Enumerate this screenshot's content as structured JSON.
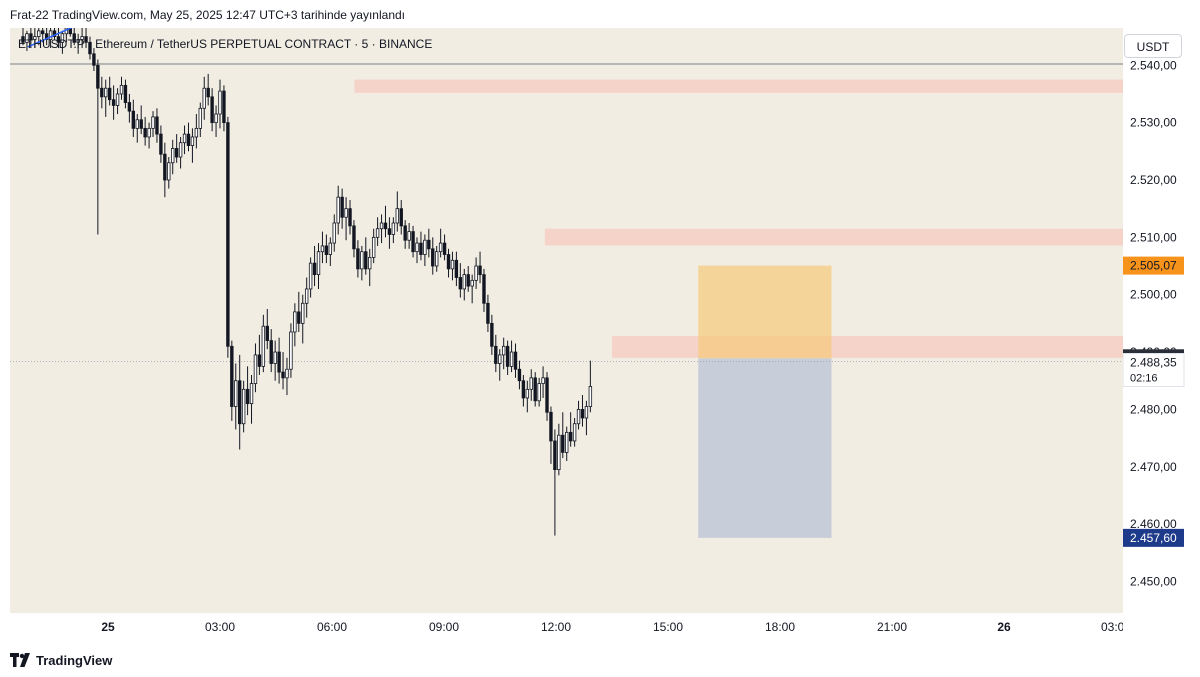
{
  "header": {
    "published": "Frat-22 TradingView.com, May 25, 2025 12:47 UTC+3 tarihinde yayınlandı"
  },
  "chart_header": {
    "symbol_line": "ETHUSDT.P · Ethereum / TetherUS PERPETUAL CONTRACT · 5 · BINANCE",
    "currency": "USDT"
  },
  "footer": {
    "brand": "TradingView"
  },
  "colors": {
    "chart_bg": "#f1ede3",
    "candle": "#131722",
    "zone": "#f5c9c0",
    "target": "#f7c97a",
    "stop": "#b7c1d4",
    "current_label": "#2a2e39",
    "marker_orange": "#f7931a",
    "marker_navy": "#1e3a8a",
    "trendline": "#2962ff"
  },
  "chart_data": {
    "type": "candlestick",
    "timeframe": "5",
    "ylim": [
      2444.5,
      2546.5
    ],
    "x_ticks": [
      "25",
      "03:00",
      "06:00",
      "09:00",
      "12:00",
      "15:00",
      "18:00",
      "21:00",
      "26",
      "03:00"
    ],
    "y_ticks": [
      2540,
      2530,
      2520,
      2510,
      2500,
      2490,
      2480,
      2470,
      2460,
      2450
    ],
    "y_tick_labels": [
      "2.540,00",
      "2.530,00",
      "2.520,00",
      "2.510,00",
      "2.500,00",
      "2.490,00",
      "2.480,00",
      "2.470,00",
      "2.460,00",
      "2.450,00"
    ],
    "price_markers": {
      "last": {
        "value": 2488.91,
        "label": "2.488,91"
      },
      "crosshair": {
        "value": 2488.35,
        "label": "2.488,35",
        "countdown": "02:16"
      },
      "target": {
        "value": 2505.07,
        "label": "2.505,07"
      },
      "stop": {
        "value": 2457.6,
        "label": "2.457,60"
      }
    },
    "zones": [
      {
        "x0": 2.2,
        "x1": 10.0,
        "y_low": 2535.2,
        "y_high": 2537.5
      },
      {
        "x0": 3.9,
        "x1": 10.0,
        "y_low": 2508.6,
        "y_high": 2511.5
      },
      {
        "x0": 4.5,
        "x1": 10.0,
        "y_low": 2489.0,
        "y_high": 2492.8
      }
    ],
    "position": {
      "x0": 5.27,
      "x1": 6.46,
      "entry": 2488.9,
      "target": 2505.07,
      "stop": 2457.6
    },
    "trendline": {
      "x0": 0.15,
      "y0": 2543.2,
      "x1": 0.8,
      "y1": 2548.8
    },
    "ohlc": [
      [
        2545.0,
        2547.0,
        2543.5,
        2544.0
      ],
      [
        2544.0,
        2546.0,
        2542.5,
        2545.5
      ],
      [
        2545.5,
        2547.0,
        2543.0,
        2544.5
      ],
      [
        2544.5,
        2546.5,
        2543.0,
        2545.0
      ],
      [
        2545.0,
        2547.5,
        2543.5,
        2546.0
      ],
      [
        2546.0,
        2548.0,
        2544.0,
        2545.5
      ],
      [
        2545.5,
        2547.0,
        2543.5,
        2544.5
      ],
      [
        2544.5,
        2546.5,
        2543.0,
        2546.0
      ],
      [
        2546.0,
        2548.0,
        2544.5,
        2545.0
      ],
      [
        2545.0,
        2546.5,
        2543.0,
        2544.0
      ],
      [
        2544.0,
        2546.0,
        2542.0,
        2545.5
      ],
      [
        2545.5,
        2547.5,
        2544.0,
        2546.5
      ],
      [
        2546.5,
        2548.5,
        2545.0,
        2545.5
      ],
      [
        2545.5,
        2547.0,
        2543.5,
        2544.0
      ],
      [
        2544.0,
        2545.5,
        2542.0,
        2544.5
      ],
      [
        2544.5,
        2546.5,
        2543.0,
        2545.0
      ],
      [
        2545.0,
        2547.0,
        2543.0,
        2544.0
      ],
      [
        2544.0,
        2545.0,
        2541.0,
        2542.0
      ],
      [
        2542.0,
        2543.0,
        2539.0,
        2540.0
      ],
      [
        2540.0,
        2541.0,
        2510.5,
        2536.0
      ],
      [
        2536.0,
        2538.0,
        2532.5,
        2534.5
      ],
      [
        2534.5,
        2537.5,
        2531.0,
        2536.0
      ],
      [
        2536.0,
        2538.0,
        2533.0,
        2534.0
      ],
      [
        2534.0,
        2536.5,
        2530.5,
        2533.0
      ],
      [
        2533.0,
        2536.0,
        2531.5,
        2535.0
      ],
      [
        2535.0,
        2538.0,
        2534.0,
        2536.5
      ],
      [
        2536.5,
        2537.5,
        2532.5,
        2533.5
      ],
      [
        2533.5,
        2535.0,
        2530.0,
        2532.0
      ],
      [
        2532.0,
        2534.0,
        2527.5,
        2529.0
      ],
      [
        2529.0,
        2531.5,
        2526.5,
        2530.5
      ],
      [
        2530.5,
        2533.0,
        2528.0,
        2529.0
      ],
      [
        2529.0,
        2531.0,
        2526.0,
        2527.5
      ],
      [
        2527.5,
        2530.0,
        2525.5,
        2529.0
      ],
      [
        2529.0,
        2532.0,
        2527.5,
        2531.0
      ],
      [
        2531.0,
        2532.5,
        2526.5,
        2528.0
      ],
      [
        2528.0,
        2529.5,
        2523.0,
        2524.5
      ],
      [
        2524.5,
        2526.5,
        2517.0,
        2520.0
      ],
      [
        2520.0,
        2524.0,
        2518.5,
        2523.0
      ],
      [
        2523.0,
        2527.0,
        2521.0,
        2525.5
      ],
      [
        2525.5,
        2528.0,
        2523.0,
        2524.0
      ],
      [
        2524.0,
        2527.5,
        2522.0,
        2526.5
      ],
      [
        2526.5,
        2529.5,
        2524.5,
        2528.0
      ],
      [
        2528.0,
        2530.0,
        2525.0,
        2526.0
      ],
      [
        2526.0,
        2529.0,
        2523.0,
        2527.5
      ],
      [
        2527.5,
        2531.5,
        2525.5,
        2529.0
      ],
      [
        2529.0,
        2533.5,
        2527.5,
        2532.5
      ],
      [
        2532.5,
        2538.0,
        2530.5,
        2536.0
      ],
      [
        2536.0,
        2538.5,
        2533.0,
        2534.5
      ],
      [
        2534.5,
        2536.0,
        2528.5,
        2530.0
      ],
      [
        2530.0,
        2533.0,
        2527.5,
        2531.5
      ],
      [
        2531.5,
        2537.5,
        2529.0,
        2535.5
      ],
      [
        2535.5,
        2536.5,
        2528.5,
        2530.0
      ],
      [
        2530.0,
        2531.0,
        2489.0,
        2491.0
      ],
      [
        2491.0,
        2492.0,
        2478.0,
        2480.5
      ],
      [
        2480.5,
        2488.0,
        2476.5,
        2485.0
      ],
      [
        2485.0,
        2489.5,
        2473.0,
        2477.5
      ],
      [
        2477.5,
        2485.0,
        2476.0,
        2483.5
      ],
      [
        2483.5,
        2487.5,
        2479.0,
        2481.0
      ],
      [
        2481.0,
        2486.0,
        2477.5,
        2484.5
      ],
      [
        2484.5,
        2491.5,
        2483.0,
        2489.5
      ],
      [
        2489.5,
        2493.0,
        2486.0,
        2487.5
      ],
      [
        2487.5,
        2496.5,
        2486.5,
        2494.5
      ],
      [
        2494.5,
        2497.5,
        2490.5,
        2492.0
      ],
      [
        2492.0,
        2494.0,
        2486.5,
        2488.0
      ],
      [
        2488.0,
        2492.0,
        2485.0,
        2490.0
      ],
      [
        2490.0,
        2492.5,
        2484.5,
        2486.5
      ],
      [
        2486.5,
        2490.0,
        2483.5,
        2485.5
      ],
      [
        2485.5,
        2489.0,
        2482.5,
        2487.0
      ],
      [
        2487.0,
        2495.0,
        2485.5,
        2493.5
      ],
      [
        2493.5,
        2498.5,
        2491.0,
        2497.0
      ],
      [
        2497.0,
        2500.5,
        2493.5,
        2495.0
      ],
      [
        2495.0,
        2500.0,
        2491.5,
        2498.5
      ],
      [
        2498.5,
        2503.0,
        2496.0,
        2501.0
      ],
      [
        2501.0,
        2506.5,
        2499.5,
        2505.5
      ],
      [
        2505.5,
        2508.5,
        2501.5,
        2503.5
      ],
      [
        2503.5,
        2509.0,
        2501.0,
        2507.5
      ],
      [
        2507.5,
        2511.0,
        2505.5,
        2508.5
      ],
      [
        2508.5,
        2510.5,
        2505.5,
        2507.0
      ],
      [
        2507.0,
        2510.0,
        2505.0,
        2509.0
      ],
      [
        2509.0,
        2514.0,
        2507.5,
        2512.5
      ],
      [
        2512.5,
        2519.0,
        2510.5,
        2517.0
      ],
      [
        2517.0,
        2518.5,
        2511.5,
        2513.5
      ],
      [
        2513.5,
        2517.0,
        2509.5,
        2515.0
      ],
      [
        2515.0,
        2516.5,
        2510.5,
        2512.0
      ],
      [
        2512.0,
        2513.0,
        2506.5,
        2508.0
      ],
      [
        2508.0,
        2509.5,
        2503.0,
        2504.5
      ],
      [
        2504.5,
        2508.5,
        2502.5,
        2507.5
      ],
      [
        2507.5,
        2510.0,
        2503.5,
        2504.5
      ],
      [
        2504.5,
        2508.0,
        2501.5,
        2506.5
      ],
      [
        2506.5,
        2511.5,
        2505.5,
        2510.0
      ],
      [
        2510.0,
        2513.5,
        2508.5,
        2511.5
      ],
      [
        2511.5,
        2514.0,
        2509.0,
        2512.5
      ],
      [
        2512.5,
        2515.5,
        2510.0,
        2511.5
      ],
      [
        2511.5,
        2513.5,
        2508.0,
        2510.5
      ],
      [
        2510.5,
        2513.5,
        2509.0,
        2512.5
      ],
      [
        2512.5,
        2518.0,
        2511.0,
        2515.0
      ],
      [
        2515.0,
        2516.5,
        2510.5,
        2512.0
      ],
      [
        2512.0,
        2513.0,
        2508.0,
        2509.5
      ],
      [
        2509.5,
        2512.5,
        2508.0,
        2511.0
      ],
      [
        2511.0,
        2512.0,
        2506.5,
        2507.5
      ],
      [
        2507.5,
        2510.0,
        2505.5,
        2509.0
      ],
      [
        2509.0,
        2511.0,
        2506.0,
        2507.0
      ],
      [
        2507.0,
        2510.5,
        2505.0,
        2509.5
      ],
      [
        2509.5,
        2511.5,
        2506.5,
        2508.0
      ],
      [
        2508.0,
        2510.0,
        2503.5,
        2505.0
      ],
      [
        2505.0,
        2508.5,
        2504.0,
        2507.5
      ],
      [
        2507.5,
        2511.5,
        2506.5,
        2509.0
      ],
      [
        2509.0,
        2510.5,
        2506.0,
        2507.0
      ],
      [
        2507.0,
        2508.0,
        2503.0,
        2504.5
      ],
      [
        2504.5,
        2507.5,
        2502.5,
        2506.0
      ],
      [
        2506.0,
        2507.5,
        2501.5,
        2503.0
      ],
      [
        2503.0,
        2505.5,
        2499.5,
        2501.0
      ],
      [
        2501.0,
        2504.5,
        2499.0,
        2503.5
      ],
      [
        2503.5,
        2505.0,
        2500.5,
        2501.5
      ],
      [
        2501.5,
        2503.5,
        2498.5,
        2502.5
      ],
      [
        2502.5,
        2506.5,
        2501.0,
        2505.0
      ],
      [
        2505.0,
        2507.5,
        2502.0,
        2503.5
      ],
      [
        2503.5,
        2504.5,
        2497.0,
        2498.5
      ],
      [
        2498.5,
        2500.0,
        2493.5,
        2495.0
      ],
      [
        2495.0,
        2496.5,
        2489.5,
        2491.0
      ],
      [
        2491.0,
        2493.0,
        2486.5,
        2488.0
      ],
      [
        2488.0,
        2490.5,
        2485.0,
        2489.5
      ],
      [
        2489.5,
        2492.5,
        2487.0,
        2491.0
      ],
      [
        2491.0,
        2492.0,
        2486.0,
        2487.5
      ],
      [
        2487.5,
        2492.0,
        2486.5,
        2490.0
      ],
      [
        2490.0,
        2491.5,
        2485.5,
        2487.0
      ],
      [
        2487.0,
        2488.5,
        2483.5,
        2485.0
      ],
      [
        2485.0,
        2486.0,
        2480.5,
        2482.0
      ],
      [
        2482.0,
        2485.0,
        2479.5,
        2483.5
      ],
      [
        2483.5,
        2487.0,
        2481.5,
        2485.5
      ],
      [
        2485.5,
        2486.5,
        2480.5,
        2481.5
      ],
      [
        2481.5,
        2485.5,
        2480.5,
        2484.5
      ],
      [
        2484.5,
        2487.5,
        2482.0,
        2485.5
      ],
      [
        2485.5,
        2486.5,
        2478.0,
        2479.5
      ],
      [
        2479.5,
        2480.5,
        2470.5,
        2474.5
      ],
      [
        2474.5,
        2476.5,
        2458.0,
        2469.5
      ],
      [
        2469.5,
        2477.5,
        2468.5,
        2475.5
      ],
      [
        2475.5,
        2479.5,
        2471.5,
        2472.5
      ],
      [
        2472.5,
        2477.0,
        2471.0,
        2476.0
      ],
      [
        2476.0,
        2479.5,
        2473.5,
        2474.5
      ],
      [
        2474.5,
        2478.5,
        2473.5,
        2477.5
      ],
      [
        2477.5,
        2481.5,
        2476.5,
        2480.0
      ],
      [
        2480.0,
        2482.5,
        2477.0,
        2478.5
      ],
      [
        2478.5,
        2481.5,
        2475.5,
        2480.5
      ],
      [
        2480.5,
        2488.5,
        2479.5,
        2484.0
      ]
    ]
  }
}
